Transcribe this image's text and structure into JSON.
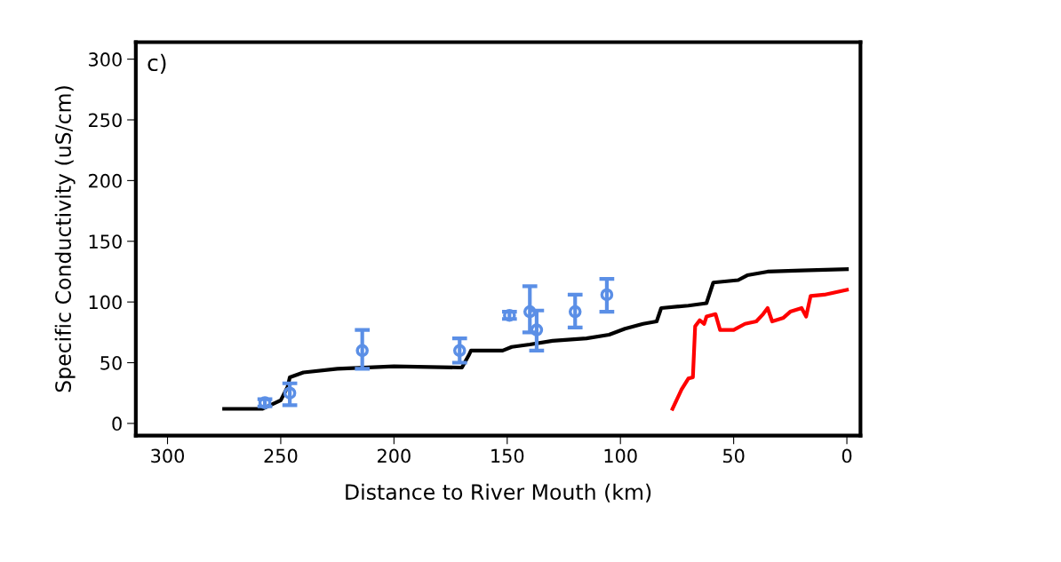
{
  "chart_data": {
    "type": "line",
    "xlabel": "Distance to River Mouth (km)",
    "ylabel": "Specific Conductivity (uS/cm)",
    "annotations": [
      "c)"
    ],
    "xlim": [
      314,
      -6
    ],
    "ylim": [
      -10,
      314
    ],
    "xticks": [
      300,
      250,
      200,
      150,
      100,
      50,
      0
    ],
    "yticks": [
      0,
      50,
      100,
      150,
      200,
      250,
      300
    ],
    "grid": false,
    "legend": false,
    "series": [
      {
        "color": "#000000",
        "x": [
          275,
          258,
          250,
          247,
          246,
          240,
          225,
          200,
          170,
          167,
          166,
          152,
          148,
          140,
          130,
          115,
          105,
          98,
          90,
          84,
          82,
          70,
          62,
          59,
          48,
          44,
          35,
          20,
          0
        ],
        "values": [
          12,
          12,
          19,
          30,
          38,
          42,
          45,
          47,
          46,
          56,
          60,
          60,
          63,
          65,
          68,
          70,
          73,
          78,
          82,
          84,
          95,
          97,
          99,
          116,
          118,
          122,
          125,
          126,
          127
        ]
      },
      {
        "color": "#ff0000",
        "x": [
          77,
          73,
          70,
          68,
          67,
          65,
          63,
          62,
          58,
          56,
          50,
          45,
          40,
          37,
          35,
          33,
          28,
          25,
          20,
          18,
          16,
          10,
          0
        ],
        "values": [
          12,
          28,
          37,
          38,
          80,
          85,
          82,
          88,
          90,
          77,
          77,
          82,
          84,
          90,
          95,
          84,
          87,
          92,
          95,
          88,
          105,
          106,
          110
        ]
      },
      {
        "type": "scatter",
        "color": "#5b8fe6",
        "marker": "circle",
        "x": [
          257,
          246,
          214,
          171,
          149,
          140,
          137,
          120,
          106
        ],
        "values": [
          17,
          25,
          60,
          60,
          89,
          92,
          77,
          92,
          106
        ],
        "errors": [
          3,
          [
            15,
            33
          ],
          [
            45,
            77
          ],
          [
            50,
            70
          ],
          3,
          [
            75,
            113
          ],
          [
            60,
            93
          ],
          [
            79,
            106
          ],
          [
            92,
            119
          ]
        ]
      }
    ]
  }
}
